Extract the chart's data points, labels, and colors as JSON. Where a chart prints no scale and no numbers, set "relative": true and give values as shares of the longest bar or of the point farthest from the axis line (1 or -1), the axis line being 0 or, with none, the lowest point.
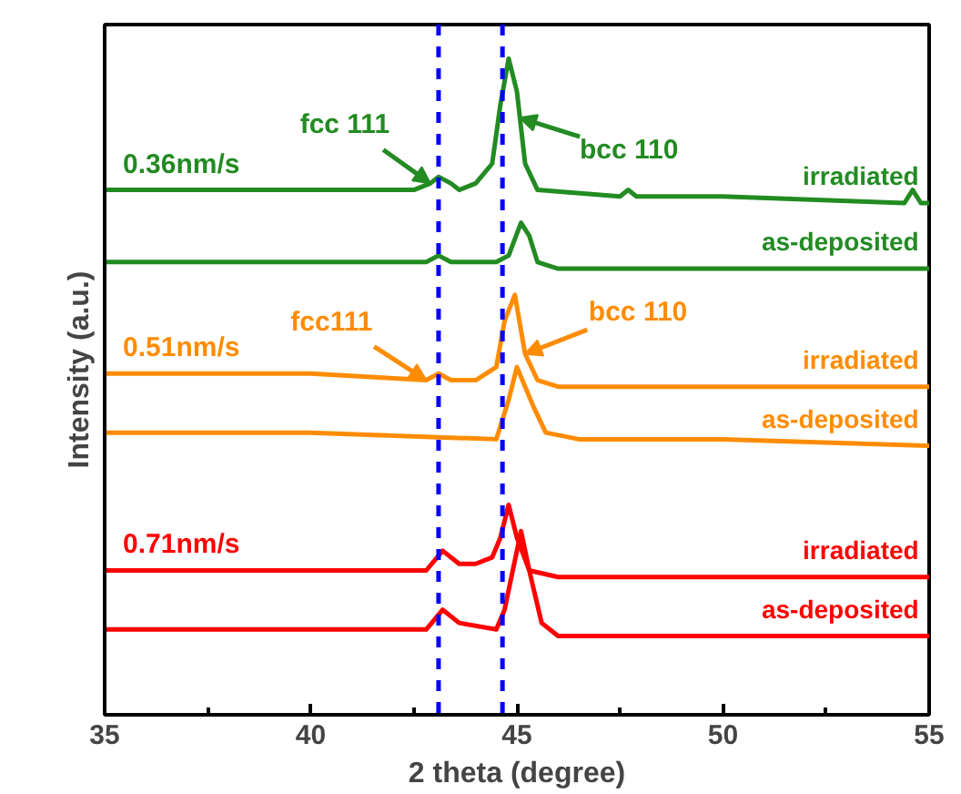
{
  "chart_data": {
    "type": "line",
    "relative": true,
    "xlabel": "2 theta (degree)",
    "ylabel": "Intensity (a.u.)",
    "xlim": [
      35,
      55
    ],
    "xticks": [
      35,
      {
        "value": 37.5,
        "label": null
      },
      40,
      {
        "value": 42.5,
        "label": null
      },
      45,
      {
        "value": 47.5,
        "label": null
      },
      50,
      {
        "value": 52.5,
        "label": null
      },
      55
    ],
    "grid": false,
    "marker": "none",
    "line_style": "solid",
    "series": [
      {
        "name": "irradiated",
        "color": "#228b22",
        "x": [
          35,
          38,
          42.5,
          42.9,
          43.1,
          43.4,
          43.6,
          44.0,
          44.4,
          44.6,
          44.8,
          45.0,
          45.2,
          45.5,
          47.5,
          47.7,
          47.9,
          50,
          54.4,
          54.6,
          54.8,
          55
        ],
        "values": [
          0.8,
          0.8,
          0.8,
          0.81,
          0.82,
          0.81,
          0.8,
          0.81,
          0.84,
          0.93,
          1.0,
          0.95,
          0.84,
          0.8,
          0.79,
          0.8,
          0.79,
          0.79,
          0.78,
          0.8,
          0.78,
          0.78
        ]
      },
      {
        "name": "as-deposited",
        "color": "#228b22",
        "x": [
          35,
          40,
          42.8,
          43.1,
          43.4,
          44.5,
          44.8,
          45.1,
          45.3,
          45.5,
          46,
          50,
          55
        ],
        "values": [
          0.69,
          0.69,
          0.69,
          0.7,
          0.69,
          0.69,
          0.7,
          0.75,
          0.73,
          0.69,
          0.68,
          0.68,
          0.68
        ]
      },
      {
        "name": "irradiated",
        "color": "#ff8c00",
        "x": [
          35,
          40,
          42.8,
          43.1,
          43.4,
          44.0,
          44.5,
          44.7,
          44.95,
          45.2,
          45.5,
          46,
          50,
          55
        ],
        "values": [
          0.52,
          0.52,
          0.51,
          0.52,
          0.51,
          0.51,
          0.53,
          0.6,
          0.64,
          0.55,
          0.51,
          0.5,
          0.5,
          0.5
        ]
      },
      {
        "name": "as-deposited",
        "color": "#ff8c00",
        "x": [
          35,
          40,
          44.5,
          44.8,
          45.0,
          45.2,
          45.4,
          45.7,
          46.5,
          50,
          55
        ],
        "values": [
          0.43,
          0.43,
          0.42,
          0.48,
          0.53,
          0.5,
          0.47,
          0.43,
          0.42,
          0.42,
          0.41
        ]
      },
      {
        "name": "irradiated",
        "color": "#ff0000",
        "x": [
          35,
          40,
          42.8,
          43.2,
          43.6,
          44.0,
          44.4,
          44.6,
          44.8,
          45.0,
          45.3,
          46,
          50,
          55
        ],
        "values": [
          0.22,
          0.22,
          0.22,
          0.25,
          0.23,
          0.23,
          0.24,
          0.27,
          0.32,
          0.27,
          0.22,
          0.21,
          0.21,
          0.21
        ]
      },
      {
        "name": "as-deposited",
        "color": "#ff0000",
        "x": [
          35,
          40,
          42.8,
          43.2,
          43.6,
          44.5,
          44.7,
          44.9,
          45.1,
          45.3,
          45.6,
          46,
          50,
          55
        ],
        "values": [
          0.13,
          0.13,
          0.13,
          0.16,
          0.14,
          0.13,
          0.16,
          0.22,
          0.28,
          0.22,
          0.14,
          0.12,
          0.12,
          0.12
        ]
      }
    ],
    "ref_lines": [
      {
        "axis": "x",
        "value": 43.1,
        "color": "#0000ff",
        "line_style": "dashed"
      },
      {
        "axis": "x",
        "value": 44.65,
        "color": "#0000ff",
        "line_style": "dashed"
      }
    ],
    "annotations": [
      "0.36nm/s",
      {
        "text": "fcc 111",
        "x": 42.9,
        "y": 0.81
      },
      {
        "text": "bcc 110",
        "x": 45.07,
        "y": 0.91
      },
      "0.51nm/s",
      {
        "text": "fcc111",
        "x": 42.8,
        "y": 0.51
      },
      {
        "text": "bcc 110",
        "x": 45.2,
        "y": 0.55
      },
      "0.71nm/s"
    ]
  }
}
